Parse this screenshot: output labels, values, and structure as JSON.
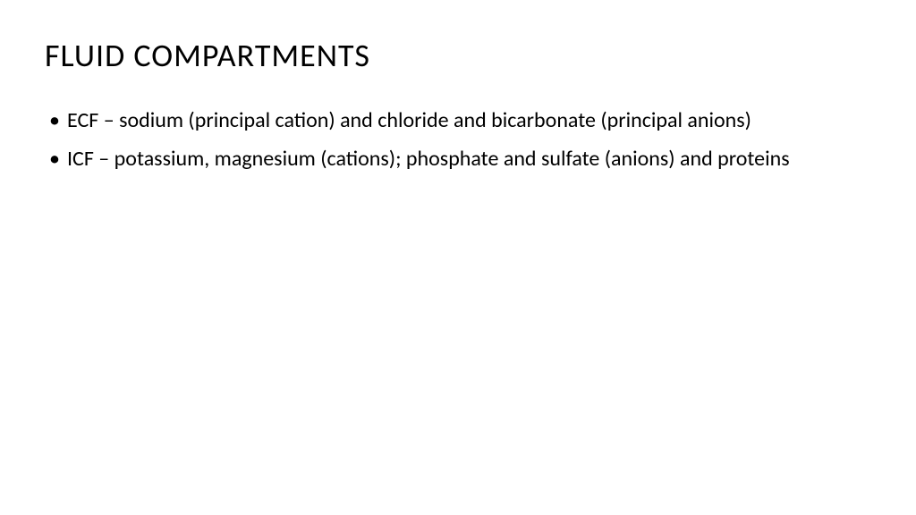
{
  "slide": {
    "title": "FLUID COMPARTMENTS",
    "bullets": [
      "ECF – sodium (principal cation) and chloride and bicarbonate (principal anions)",
      "ICF – potassium, magnesium (cations); phosphate and sulfate (anions) and proteins"
    ],
    "background_color": "#ffffff",
    "text_color": "#000000",
    "title_fontsize": 36,
    "bullet_fontsize": 24
  }
}
